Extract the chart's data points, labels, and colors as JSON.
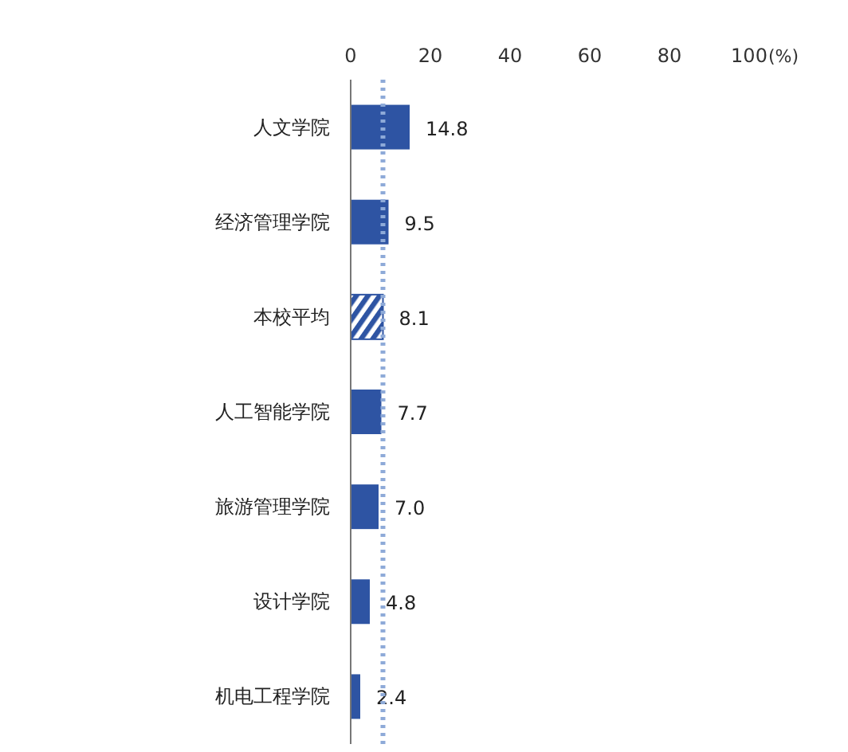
{
  "chart_data": {
    "type": "bar",
    "orientation": "horizontal",
    "xlabel": "(%)",
    "categories": [
      "人文学院",
      "经济管理学院",
      "本校平均",
      "人工智能学院",
      "旅游管理学院",
      "设计学院",
      "机电工程学院"
    ],
    "values": [
      14.8,
      9.5,
      8.1,
      7.7,
      7.0,
      4.8,
      2.4
    ],
    "color": "#2e54a3",
    "xlim": [
      0,
      100
    ],
    "xticks": [
      0,
      20,
      40,
      60,
      80,
      100
    ],
    "value_labels": [
      "14.8",
      "9.5",
      "8.1",
      "7.7",
      "7.0",
      "4.8",
      "2.4"
    ],
    "ref_lines": [
      {
        "axis": "x",
        "value": 8.1,
        "label": null,
        "color": "#8eaad8",
        "line_style": "dotted"
      }
    ]
  }
}
